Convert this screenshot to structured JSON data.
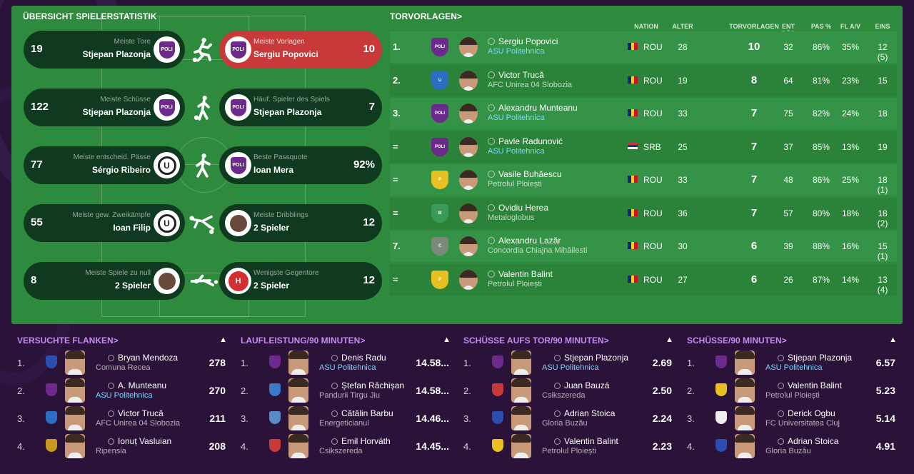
{
  "overview": {
    "title": "ÜBERSICHT SPIELERSTATISTIK",
    "rows": [
      {
        "left_value": "19",
        "left_label": "Meiste Tore",
        "left_name": "Stjepan Plazonja",
        "left_crest": "POLI",
        "right_value": "10",
        "right_label": "Meiste Vorlagen",
        "right_name": "Sergiu Popovici",
        "right_crest": "POLI"
      },
      {
        "left_value": "122",
        "left_label": "Meiste Schüsse",
        "left_name": "Stjepan Plazonja",
        "left_crest": "POLI",
        "right_value": "7",
        "right_label": "Häuf. Spieler des Spiels",
        "right_name": "Stjepan Plazonja",
        "right_crest": "POLI"
      },
      {
        "left_value": "77",
        "left_label": "Meiste entscheid. Pässe",
        "left_name": "Sérgio Ribeiro",
        "left_crest": "U",
        "right_value": "92%",
        "right_label": "Beste Passquote",
        "right_name": "Ioan Mera",
        "right_crest": "POLI"
      },
      {
        "left_value": "55",
        "left_label": "Meiste gew. Zweikämpfe",
        "left_name": "Ioan Filip",
        "left_crest": "U",
        "right_value": "12",
        "right_label": "Meiste Dribblings",
        "right_name": "2 Spieler",
        "right_crest": "D"
      },
      {
        "left_value": "8",
        "left_label": "Meiste Spiele zu null",
        "left_name": "2 Spieler",
        "left_crest": "D",
        "right_value": "12",
        "right_label": "Wenigste Gegentore",
        "right_name": "2 Spieler",
        "right_crest": "H"
      }
    ]
  },
  "assists": {
    "title": "TORVORLAGEN",
    "columns": [
      "NATION",
      "ALTER",
      "TORVORLAGEN",
      "ENT PÄS",
      "PAS %",
      "FL A/V",
      "EINS"
    ],
    "rows": [
      {
        "rank": "1.",
        "name": "Sergiu Popovici",
        "club": "ASU Politehnica",
        "link": true,
        "nation": "ROU",
        "age": "28",
        "assists": "10",
        "kp": "32",
        "pas": "86%",
        "fl": "35%",
        "apps": "12 (5)",
        "club_color": "#6b2a8c",
        "club_text": "POLI"
      },
      {
        "rank": "2.",
        "name": "Victor Trucă",
        "club": "AFC Unirea 04 Slobozia",
        "link": false,
        "nation": "ROU",
        "age": "19",
        "assists": "8",
        "kp": "64",
        "pas": "81%",
        "fl": "23%",
        "apps": "15",
        "club_color": "#2a6fc2",
        "club_text": "U"
      },
      {
        "rank": "3.",
        "name": "Alexandru Munteanu",
        "club": "ASU Politehnica",
        "link": true,
        "nation": "ROU",
        "age": "33",
        "assists": "7",
        "kp": "75",
        "pas": "82%",
        "fl": "24%",
        "apps": "18",
        "club_color": "#6b2a8c",
        "club_text": "POLI"
      },
      {
        "rank": "=",
        "name": "Pavle Radunović",
        "club": "ASU Politehnica",
        "link": true,
        "nation": "SRB",
        "age": "25",
        "assists": "7",
        "kp": "37",
        "pas": "85%",
        "fl": "13%",
        "apps": "19",
        "club_color": "#6b2a8c",
        "club_text": "POLI"
      },
      {
        "rank": "=",
        "name": "Vasile Buhăescu",
        "club": "Petrolul Ploiești",
        "link": false,
        "nation": "ROU",
        "age": "33",
        "assists": "7",
        "kp": "48",
        "pas": "86%",
        "fl": "25%",
        "apps": "18 (1)",
        "club_color": "#e8c020",
        "club_text": "P"
      },
      {
        "rank": "=",
        "name": "Ovidiu Herea",
        "club": "Metaloglobus",
        "link": false,
        "nation": "ROU",
        "age": "36",
        "assists": "7",
        "kp": "57",
        "pas": "80%",
        "fl": "18%",
        "apps": "18 (2)",
        "club_color": "#3a9a5a",
        "club_text": "M"
      },
      {
        "rank": "7.",
        "name": "Alexandru Lazăr",
        "club": "Concordia Chiajna Mihăilesti",
        "link": false,
        "nation": "ROU",
        "age": "30",
        "assists": "6",
        "kp": "39",
        "pas": "88%",
        "fl": "16%",
        "apps": "15 (1)",
        "club_color": "#7a8a7a",
        "club_text": "C"
      },
      {
        "rank": "=",
        "name": "Valentin Balint",
        "club": "Petrolul Ploiești",
        "link": false,
        "nation": "ROU",
        "age": "27",
        "assists": "6",
        "kp": "26",
        "pas": "87%",
        "fl": "14%",
        "apps": "13 (4)",
        "club_color": "#e8c020",
        "club_text": "P"
      }
    ]
  },
  "bottom_panels": [
    {
      "title": "VERSUCHTE FLANKEN",
      "rows": [
        {
          "rank": "1.",
          "name": "Bryan Mendoza",
          "club": "Comuna Recea",
          "link": false,
          "value": "278",
          "club_color": "#2a4fb0"
        },
        {
          "rank": "2.",
          "name": "A. Munteanu",
          "club": "ASU Politehnica",
          "link": true,
          "value": "270",
          "club_color": "#6b2a8c"
        },
        {
          "rank": "3.",
          "name": "Victor Trucă",
          "club": "AFC Unirea 04 Slobozia",
          "link": false,
          "value": "211",
          "club_color": "#2a6fc2"
        },
        {
          "rank": "4.",
          "name": "Ionuț Vasluian",
          "club": "Ripensia",
          "link": false,
          "value": "208",
          "club_color": "#c89a20"
        }
      ]
    },
    {
      "title": "LAUFLEISTUNG/90 MINUTEN",
      "rows": [
        {
          "rank": "1.",
          "name": "Denis Radu",
          "club": "ASU Politehnica",
          "link": true,
          "value": "14.58...",
          "club_color": "#6b2a8c"
        },
        {
          "rank": "2.",
          "name": "Ștefan Răchișan",
          "club": "Pandurii Tirgu Jiu",
          "link": false,
          "value": "14.58...",
          "club_color": "#3a7ac8"
        },
        {
          "rank": "3.",
          "name": "Cătălin Barbu",
          "club": "Energeticianul",
          "link": false,
          "value": "14.46...",
          "club_color": "#5a8ac8"
        },
        {
          "rank": "4.",
          "name": "Emil Horváth",
          "club": "Csikszereda",
          "link": false,
          "value": "14.45...",
          "club_color": "#c83a3a"
        }
      ]
    },
    {
      "title": "SCHÜSSE AUFS TOR/90 MINUTEN",
      "rows": [
        {
          "rank": "1.",
          "name": "Stjepan Plazonja",
          "club": "ASU Politehnica",
          "link": true,
          "value": "2.69",
          "club_color": "#6b2a8c"
        },
        {
          "rank": "2.",
          "name": "Juan Bauzá",
          "club": "Csikszereda",
          "link": false,
          "value": "2.50",
          "club_color": "#c83a3a"
        },
        {
          "rank": "3.",
          "name": "Adrian Stoica",
          "club": "Gloria Buzău",
          "link": false,
          "value": "2.24",
          "club_color": "#2a4fb0"
        },
        {
          "rank": "4.",
          "name": "Valentin Balint",
          "club": "Petrolul Ploiești",
          "link": false,
          "value": "2.23",
          "club_color": "#e8c020"
        }
      ]
    },
    {
      "title": "SCHÜSSE/90 MINUTEN",
      "rows": [
        {
          "rank": "1.",
          "name": "Stjepan Plazonja",
          "club": "ASU Politehnica",
          "link": true,
          "value": "6.57",
          "club_color": "#6b2a8c"
        },
        {
          "rank": "2.",
          "name": "Valentin Balint",
          "club": "Petrolul Ploiești",
          "link": false,
          "value": "5.23",
          "club_color": "#e8c020"
        },
        {
          "rank": "3.",
          "name": "Derick Ogbu",
          "club": "FC Universitatea Cluj",
          "link": false,
          "value": "5.14",
          "club_color": "#eeeeee"
        },
        {
          "rank": "4.",
          "name": "Adrian Stoica",
          "club": "Gloria Buzău",
          "link": false,
          "value": "4.91",
          "club_color": "#2a4fb0"
        }
      ]
    }
  ]
}
